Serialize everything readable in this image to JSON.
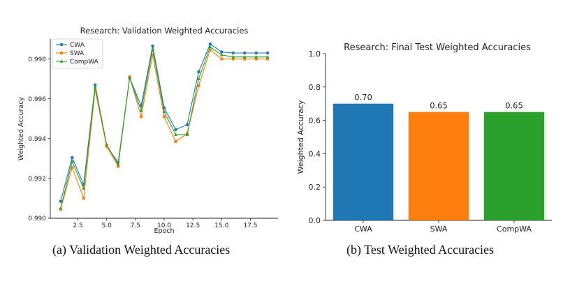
{
  "captions": {
    "left": "(a)  Validation Weighted Accuracies",
    "right": "(b)  Test Weighted Accuracies"
  },
  "chart_data": [
    {
      "type": "line",
      "title": "Research: Validation Weighted Accuracies",
      "xlabel": "Epoch",
      "ylabel": "Weighted Accuracy",
      "xlim": [
        0.1,
        19.9
      ],
      "ylim": [
        0.99,
        0.999
      ],
      "xticks": [
        2.5,
        5.0,
        7.5,
        10.0,
        12.5,
        15.0,
        17.5
      ],
      "xtick_labels": [
        "2.5",
        "5.0",
        "7.5",
        "10.0",
        "12.5",
        "15.0",
        "17.5"
      ],
      "yticks": [
        0.99,
        0.992,
        0.994,
        0.996,
        0.998
      ],
      "ytick_labels": [
        "0.990",
        "0.992",
        "0.994",
        "0.996",
        "0.998"
      ],
      "legend_position": "top-left",
      "grid": false,
      "x": [
        1,
        2,
        3,
        4,
        5,
        6,
        7,
        8,
        9,
        10,
        11,
        12,
        13,
        14,
        15,
        16,
        17,
        18,
        19
      ],
      "series": [
        {
          "name": "CWA",
          "color": "#1f77b4",
          "marker": "circle",
          "values": [
            0.99085,
            0.99305,
            0.9917,
            0.9967,
            0.99365,
            0.9928,
            0.99705,
            0.99565,
            0.99865,
            0.99555,
            0.99445,
            0.9947,
            0.99735,
            0.99875,
            0.99835,
            0.9983,
            0.9983,
            0.9983,
            0.9983
          ]
        },
        {
          "name": "SWA",
          "color": "#ff7f0e",
          "marker": "square",
          "values": [
            0.99045,
            0.99255,
            0.991,
            0.99645,
            0.9936,
            0.9926,
            0.9971,
            0.9951,
            0.9982,
            0.9951,
            0.99385,
            0.99425,
            0.99665,
            0.99845,
            0.998,
            0.998,
            0.998,
            0.998,
            0.998
          ]
        },
        {
          "name": "CompWA",
          "color": "#2ca02c",
          "marker": "triangle",
          "values": [
            0.9905,
            0.99285,
            0.9915,
            0.9966,
            0.9937,
            0.9927,
            0.99705,
            0.9954,
            0.9985,
            0.99535,
            0.9942,
            0.9942,
            0.997,
            0.9986,
            0.9982,
            0.9981,
            0.9981,
            0.9981,
            0.9981
          ]
        }
      ]
    },
    {
      "type": "bar",
      "title": "Research: Final Test Weighted Accuracies",
      "xlabel": "",
      "ylabel": "Weighted Accuracy",
      "ylim": [
        0,
        1.0
      ],
      "yticks": [
        0.0,
        0.2,
        0.4,
        0.6,
        0.8,
        1.0
      ],
      "ytick_labels": [
        "0.0",
        "0.2",
        "0.4",
        "0.6",
        "0.8",
        "1.0"
      ],
      "categories": [
        "CWA",
        "SWA",
        "CompWA"
      ],
      "values": [
        0.7,
        0.65,
        0.65
      ],
      "value_labels": [
        "0.70",
        "0.65",
        "0.65"
      ],
      "colors": [
        "#1f77b4",
        "#ff7f0e",
        "#2ca02c"
      ],
      "grid": false
    }
  ]
}
